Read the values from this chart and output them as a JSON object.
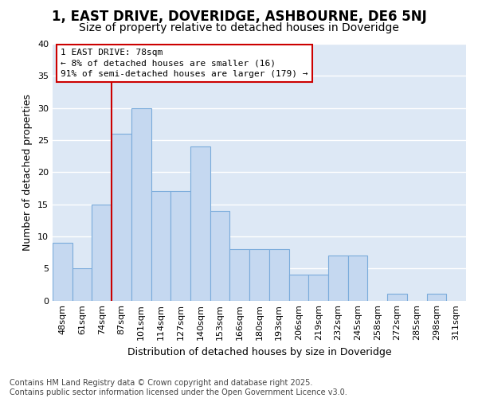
{
  "title": "1, EAST DRIVE, DOVERIDGE, ASHBOURNE, DE6 5NJ",
  "subtitle": "Size of property relative to detached houses in Doveridge",
  "xlabel": "Distribution of detached houses by size in Doveridge",
  "ylabel": "Number of detached properties",
  "categories": [
    "48sqm",
    "61sqm",
    "74sqm",
    "87sqm",
    "101sqm",
    "114sqm",
    "127sqm",
    "140sqm",
    "153sqm",
    "166sqm",
    "180sqm",
    "193sqm",
    "206sqm",
    "219sqm",
    "232sqm",
    "245sqm",
    "258sqm",
    "272sqm",
    "285sqm",
    "298sqm",
    "311sqm"
  ],
  "values": [
    9,
    5,
    15,
    26,
    30,
    17,
    17,
    24,
    14,
    8,
    8,
    8,
    4,
    4,
    7,
    7,
    0,
    1,
    0,
    1,
    0
  ],
  "bar_color": "#c5d8f0",
  "bar_edge_color": "#7aabdb",
  "annotation_text": "1 EAST DRIVE: 78sqm\n← 8% of detached houses are smaller (16)\n91% of semi-detached houses are larger (179) →",
  "annotation_box_color": "#ffffff",
  "annotation_box_edge_color": "#cc0000",
  "line_color": "#cc0000",
  "line_x_index": 2,
  "ylim": [
    0,
    40
  ],
  "yticks": [
    0,
    5,
    10,
    15,
    20,
    25,
    30,
    35,
    40
  ],
  "background_color": "#dde8f5",
  "grid_color": "#ffffff",
  "fig_background": "#ffffff",
  "footer_text": "Contains HM Land Registry data © Crown copyright and database right 2025.\nContains public sector information licensed under the Open Government Licence v3.0.",
  "title_fontsize": 12,
  "subtitle_fontsize": 10,
  "xlabel_fontsize": 9,
  "ylabel_fontsize": 9,
  "tick_fontsize": 8,
  "annotation_fontsize": 8,
  "footer_fontsize": 7
}
